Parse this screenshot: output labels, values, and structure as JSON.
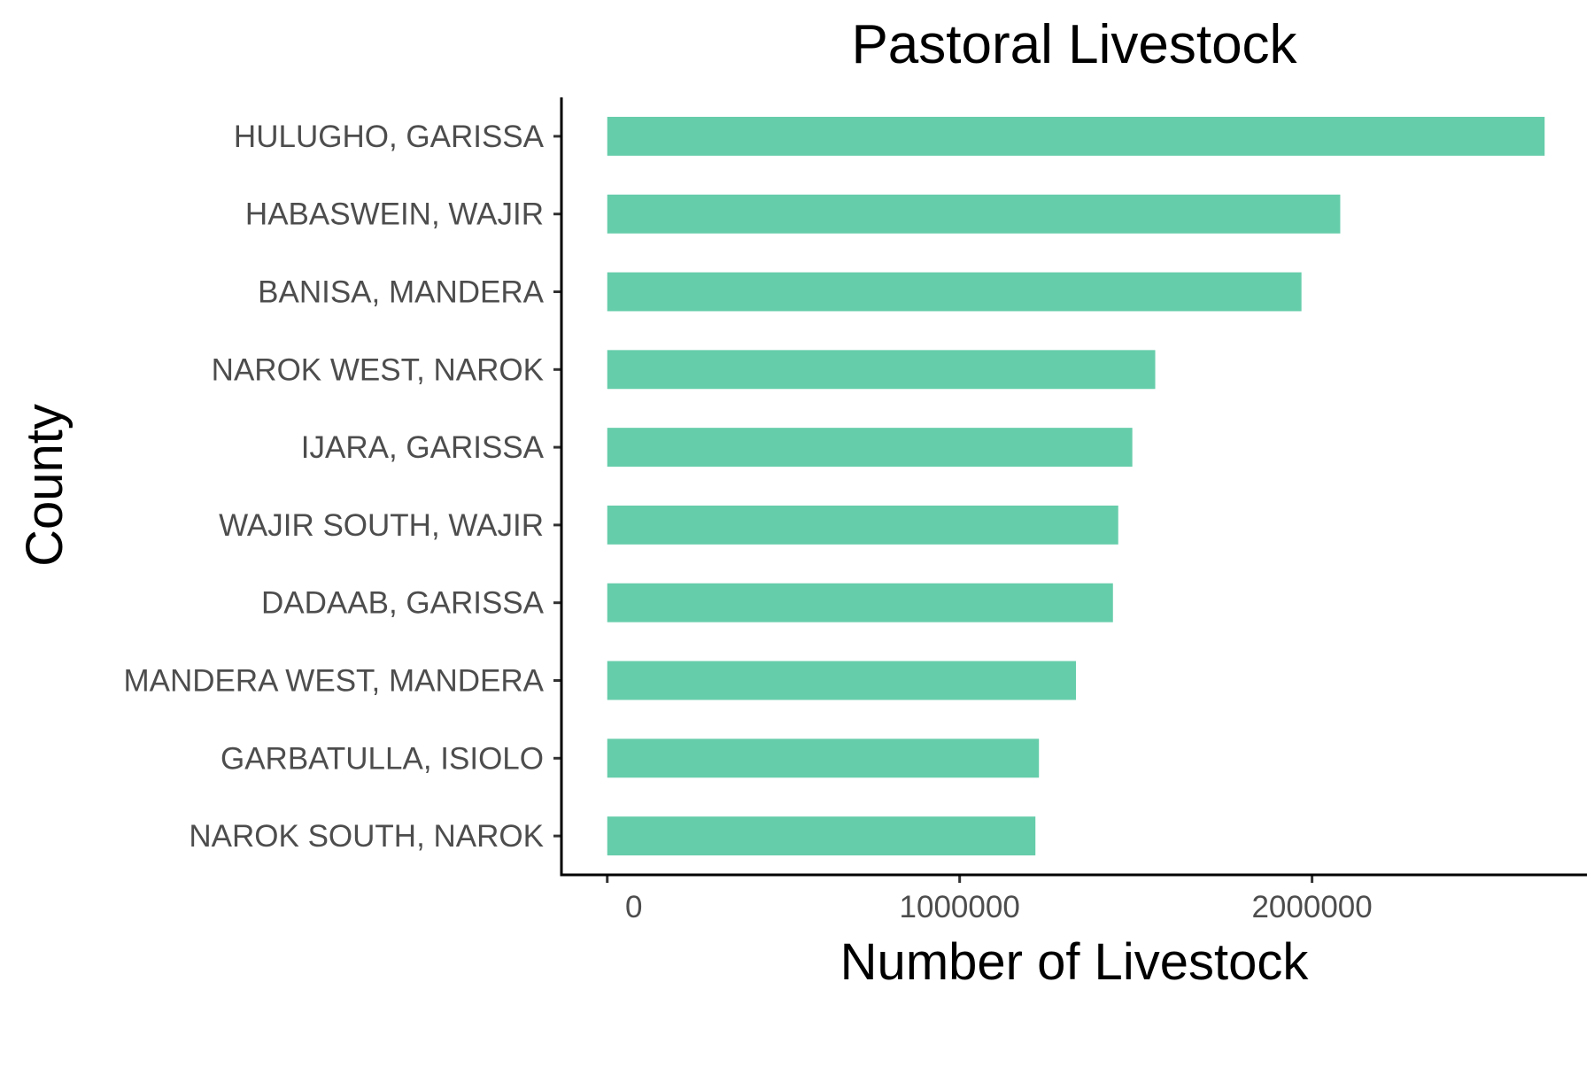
{
  "chart_data": {
    "type": "bar",
    "orientation": "horizontal",
    "title": "Pastoral Livestock",
    "xlabel": "Number of Livestock",
    "ylabel": "County",
    "categories": [
      "HULUGHO, GARISSA",
      "HABASWEIN, WAJIR",
      "BANISA, MANDERA",
      "NAROK WEST, NAROK",
      "IJARA, GARISSA",
      "WAJIR SOUTH, WAJIR",
      "DADAAB, GARISSA",
      "MANDERA WEST, MANDERA",
      "GARBATULLA, ISIOLO",
      "NAROK SOUTH, NAROK"
    ],
    "values": [
      2660000,
      2080000,
      1970000,
      1555000,
      1490000,
      1450000,
      1435000,
      1330000,
      1225000,
      1215000
    ],
    "xlim": [
      -130000,
      2780000
    ],
    "xticks": [
      0,
      1000000,
      2000000
    ],
    "xtick_labels": [
      "0",
      "1000000",
      "2000000"
    ],
    "bar_color": "#66CDAA",
    "grid": false,
    "legend": "none"
  }
}
